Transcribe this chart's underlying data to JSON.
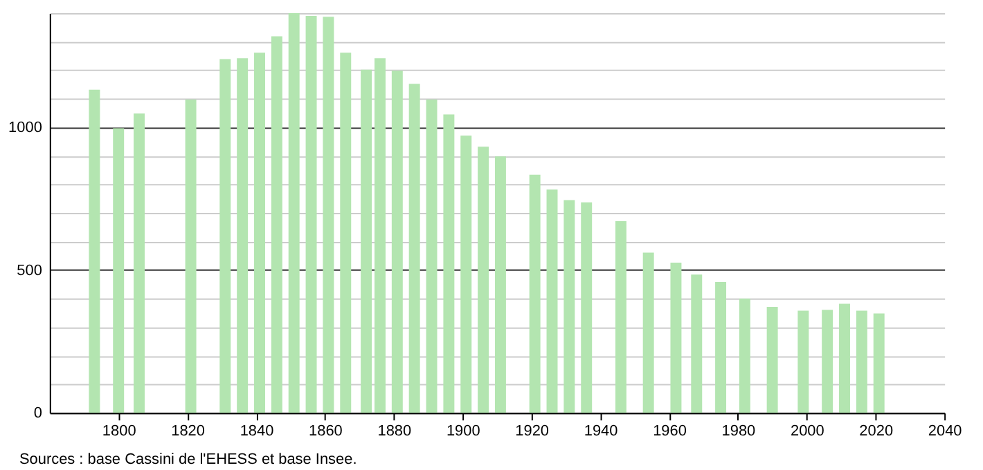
{
  "chart_data": {
    "type": "bar",
    "x": [
      1793,
      1800,
      1806,
      1821,
      1831,
      1836,
      1841,
      1846,
      1851,
      1856,
      1861,
      1866,
      1872,
      1876,
      1881,
      1886,
      1891,
      1896,
      1901,
      1906,
      1911,
      1921,
      1926,
      1931,
      1936,
      1946,
      1954,
      1962,
      1968,
      1975,
      1982,
      1990,
      1999,
      2006,
      2011,
      2016,
      2021
    ],
    "values": [
      1132,
      997,
      1048,
      1097,
      1239,
      1242,
      1261,
      1319,
      1400,
      1390,
      1387,
      1261,
      1202,
      1242,
      1198,
      1152,
      1097,
      1045,
      971,
      932,
      898,
      834,
      782,
      745,
      737,
      671,
      561,
      526,
      484,
      458,
      400,
      371,
      358,
      361,
      382,
      358,
      348
    ],
    "color": "#b3e5b0",
    "xlim": [
      1780,
      2040
    ],
    "xticks": [
      1800,
      1820,
      1840,
      1860,
      1880,
      1900,
      1920,
      1940,
      1960,
      1980,
      2000,
      2020,
      2040
    ],
    "ylim": [
      0,
      1400
    ],
    "yticks": [
      0,
      {
        "value": 100,
        "label": null
      },
      {
        "value": 200,
        "label": null
      },
      {
        "value": 300,
        "label": null
      },
      {
        "value": 400,
        "label": null
      },
      500,
      {
        "value": 600,
        "label": null
      },
      {
        "value": 700,
        "label": null
      },
      {
        "value": 800,
        "label": null
      },
      {
        "value": 900,
        "label": null
      },
      1000,
      {
        "value": 1100,
        "label": null
      },
      {
        "value": 1200,
        "label": null
      },
      {
        "value": 1300,
        "label": null
      },
      {
        "value": 1400,
        "label": null
      }
    ],
    "grid": "y",
    "annotations": [
      "Sources : base Cassini de l'EHESS et base Insee."
    ]
  }
}
